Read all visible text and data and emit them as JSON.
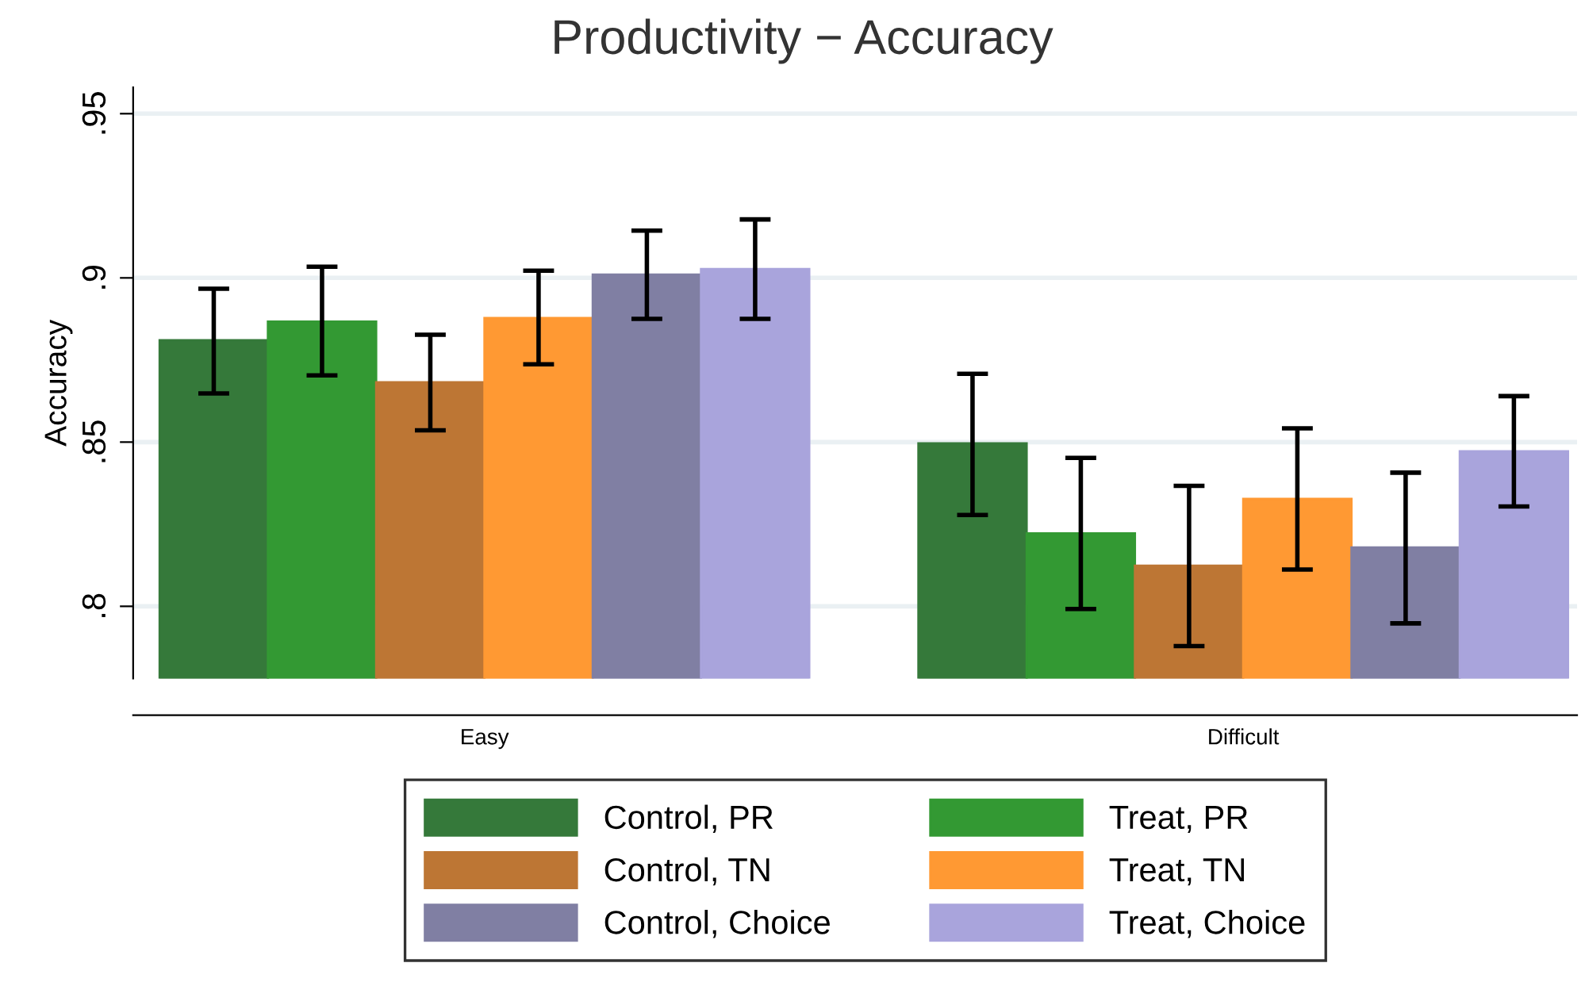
{
  "chart_data": {
    "type": "bar",
    "title": "Productivity − Accuracy",
    "ylabel": "Accuracy",
    "categories": [
      "Easy",
      "Difficult"
    ],
    "series": [
      {
        "name": "Control, PR",
        "color": "#35793a",
        "values": [
          0.881,
          0.8496
        ],
        "errors": [
          [
            0.8648,
            0.8967
          ],
          [
            0.8278,
            0.8708
          ]
        ]
      },
      {
        "name": "Treat, PR",
        "color": "#339933",
        "values": [
          0.8867,
          0.8222
        ],
        "errors": [
          [
            0.8703,
            0.9034
          ],
          [
            0.7992,
            0.8452
          ]
        ]
      },
      {
        "name": "Control, TN",
        "color": "#bd7634",
        "values": [
          0.8682,
          0.8124
        ],
        "errors": [
          [
            0.8536,
            0.8827
          ],
          [
            0.7879,
            0.8367
          ]
        ]
      },
      {
        "name": "Treat, TN",
        "color": "#ff9933",
        "values": [
          0.8878,
          0.8327
        ],
        "errors": [
          [
            0.8737,
            0.9022
          ],
          [
            0.8112,
            0.8542
          ]
        ]
      },
      {
        "name": "Control, Choice",
        "color": "#807fa3",
        "values": [
          0.901,
          0.8179
        ],
        "errors": [
          [
            0.8875,
            0.9144
          ],
          [
            0.7948,
            0.8407
          ]
        ]
      },
      {
        "name": "Treat, Choice",
        "color": "#a9a4dc",
        "values": [
          0.9027,
          0.8472
        ],
        "errors": [
          [
            0.8875,
            0.9178
          ],
          [
            0.8304,
            0.864
          ]
        ]
      }
    ],
    "ylim": [
      0.778,
      0.958
    ],
    "yticks": [
      {
        "value": 0.8,
        "label": ".8"
      },
      {
        "value": 0.85,
        "label": ".85"
      },
      {
        "value": 0.9,
        "label": ".9"
      },
      {
        "value": 0.95,
        "label": ".95"
      }
    ],
    "grid": "y",
    "legend": "bottom"
  }
}
